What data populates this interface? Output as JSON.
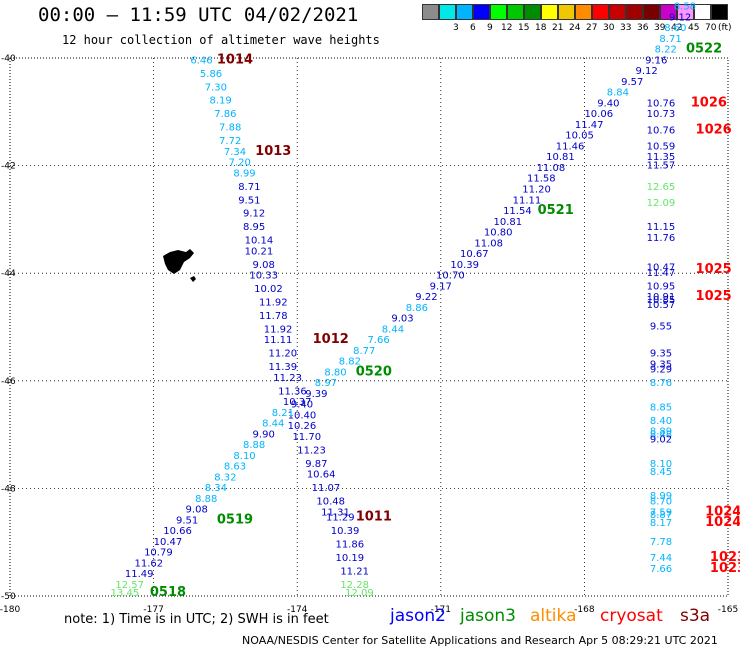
{
  "header": {
    "title": "00:00 – 11:59 UTC 04/02/2021",
    "subtitle": "12 hour collection of altimeter wave heights"
  },
  "color_scale": {
    "unit_label": "(ft)",
    "swatches": [
      {
        "label": "",
        "color": "#8c8c8c"
      },
      {
        "label": "3",
        "color": "#00e8e8"
      },
      {
        "label": "6",
        "color": "#00b4ff"
      },
      {
        "label": "9",
        "color": "#0000ff"
      },
      {
        "label": "12",
        "color": "#00ff00"
      },
      {
        "label": "15",
        "color": "#00c800"
      },
      {
        "label": "18",
        "color": "#008c00"
      },
      {
        "label": "21",
        "color": "#ffff00"
      },
      {
        "label": "24",
        "color": "#f0c800"
      },
      {
        "label": "27",
        "color": "#ff8c00"
      },
      {
        "label": "30",
        "color": "#ff0000"
      },
      {
        "label": "33",
        "color": "#c80000"
      },
      {
        "label": "36",
        "color": "#a00000"
      },
      {
        "label": "39",
        "color": "#780000"
      },
      {
        "label": "42",
        "color": "#c800c8"
      },
      {
        "label": "45",
        "color": "#ff96ff"
      },
      {
        "label": "70",
        "color": "#ffffff"
      },
      {
        "label": "",
        "color": "#000000"
      }
    ]
  },
  "map": {
    "lon_min": -180,
    "lon_max": -165,
    "lat_min": -50,
    "lat_max": -40,
    "x_ticks": [
      "-180",
      "-177",
      "-174",
      "-171",
      "-168",
      "-165"
    ],
    "y_ticks": [
      "-40",
      "-42",
      "-44",
      "-46",
      "-48",
      "-50"
    ],
    "colors": {
      "lightblue": "#00b4ff",
      "blue": "#0000c8",
      "green": "#64e664",
      "darkgreen": "#008c00",
      "darkred": "#800000",
      "red": "#ff0000"
    },
    "labels": [
      {
        "t": "6.46",
        "lon": -176.0,
        "lat": -40.1,
        "c": "lightblue"
      },
      {
        "t": "1014",
        "lon": -175.3,
        "lat": -40.1,
        "c": "darkred"
      },
      {
        "t": "5.86",
        "lon": -175.8,
        "lat": -40.35,
        "c": "lightblue"
      },
      {
        "t": "7.30",
        "lon": -175.7,
        "lat": -40.6,
        "c": "lightblue"
      },
      {
        "t": "8.19",
        "lon": -175.6,
        "lat": -40.85,
        "c": "lightblue"
      },
      {
        "t": "7.86",
        "lon": -175.5,
        "lat": -41.1,
        "c": "lightblue"
      },
      {
        "t": "7.88",
        "lon": -175.4,
        "lat": -41.35,
        "c": "lightblue"
      },
      {
        "t": "7.72",
        "lon": -175.4,
        "lat": -41.6,
        "c": "lightblue"
      },
      {
        "t": "7.34",
        "lon": -175.3,
        "lat": -41.8,
        "c": "lightblue"
      },
      {
        "t": "1013",
        "lon": -174.5,
        "lat": -41.8,
        "c": "darkred"
      },
      {
        "t": "7.20",
        "lon": -175.2,
        "lat": -42.0,
        "c": "lightblue"
      },
      {
        "t": "8.99",
        "lon": -175.1,
        "lat": -42.2,
        "c": "lightblue"
      },
      {
        "t": "8.71",
        "lon": -175.0,
        "lat": -42.45,
        "c": "blue"
      },
      {
        "t": "9.51",
        "lon": -175.0,
        "lat": -42.7,
        "c": "blue"
      },
      {
        "t": "9.12",
        "lon": -174.9,
        "lat": -42.95,
        "c": "blue"
      },
      {
        "t": "8.95",
        "lon": -174.9,
        "lat": -43.2,
        "c": "blue"
      },
      {
        "t": "10.14",
        "lon": -174.8,
        "lat": -43.45,
        "c": "blue"
      },
      {
        "t": "10.21",
        "lon": -174.8,
        "lat": -43.65,
        "c": "blue"
      },
      {
        "t": "9.08",
        "lon": -174.7,
        "lat": -43.9,
        "c": "blue"
      },
      {
        "t": "10.33",
        "lon": -174.7,
        "lat": -44.1,
        "c": "blue"
      },
      {
        "t": "10.02",
        "lon": -174.6,
        "lat": -44.35,
        "c": "blue"
      },
      {
        "t": "11.92",
        "lon": -174.5,
        "lat": -44.6,
        "c": "blue"
      },
      {
        "t": "11.78",
        "lon": -174.5,
        "lat": -44.85,
        "c": "blue"
      },
      {
        "t": "11.92",
        "lon": -174.4,
        "lat": -45.1,
        "c": "blue"
      },
      {
        "t": "11.11",
        "lon": -174.4,
        "lat": -45.3,
        "c": "blue"
      },
      {
        "t": "1012",
        "lon": -173.3,
        "lat": -45.3,
        "c": "darkred"
      },
      {
        "t": "11.20",
        "lon": -174.3,
        "lat": -45.55,
        "c": "blue"
      },
      {
        "t": "11.39",
        "lon": -174.3,
        "lat": -45.8,
        "c": "blue"
      },
      {
        "t": "11.23",
        "lon": -174.2,
        "lat": -46.0,
        "c": "blue"
      },
      {
        "t": "11.36",
        "lon": -174.1,
        "lat": -46.25,
        "c": "blue"
      },
      {
        "t": "10.37",
        "lon": -174.0,
        "lat": -46.45,
        "c": "blue"
      },
      {
        "t": "10.40",
        "lon": -173.9,
        "lat": -46.7,
        "c": "blue"
      },
      {
        "t": "10.26",
        "lon": -173.9,
        "lat": -46.9,
        "c": "blue"
      },
      {
        "t": "11.70",
        "lon": -173.8,
        "lat": -47.1,
        "c": "blue"
      },
      {
        "t": "11.23",
        "lon": -173.7,
        "lat": -47.35,
        "c": "blue"
      },
      {
        "t": "9.87",
        "lon": -173.6,
        "lat": -47.6,
        "c": "blue"
      },
      {
        "t": "10.64",
        "lon": -173.5,
        "lat": -47.8,
        "c": "blue"
      },
      {
        "t": "11.07",
        "lon": -173.4,
        "lat": -48.05,
        "c": "blue"
      },
      {
        "t": "10.48",
        "lon": -173.3,
        "lat": -48.3,
        "c": "blue"
      },
      {
        "t": "11.31",
        "lon": -173.2,
        "lat": -48.5,
        "c": "blue"
      },
      {
        "t": "11.29",
        "lon": -173.1,
        "lat": -48.6,
        "c": "blue"
      },
      {
        "t": "1011",
        "lon": -172.4,
        "lat": -48.6,
        "c": "darkred"
      },
      {
        "t": "10.39",
        "lon": -173.0,
        "lat": -48.85,
        "c": "blue"
      },
      {
        "t": "11.86",
        "lon": -172.9,
        "lat": -49.1,
        "c": "blue"
      },
      {
        "t": "10.19",
        "lon": -172.9,
        "lat": -49.35,
        "c": "blue"
      },
      {
        "t": "11.21",
        "lon": -172.8,
        "lat": -49.6,
        "c": "blue"
      },
      {
        "t": "12.28",
        "lon": -172.8,
        "lat": -49.85,
        "c": "green"
      },
      {
        "t": "12.09",
        "lon": -172.7,
        "lat": -50.0,
        "c": "green"
      },
      {
        "t": "13.45",
        "lon": -177.6,
        "lat": -50.0,
        "c": "green"
      },
      {
        "t": "0518",
        "lon": -176.7,
        "lat": -50.0,
        "c": "darkgreen"
      },
      {
        "t": "12.57",
        "lon": -177.5,
        "lat": -49.85,
        "c": "green"
      },
      {
        "t": "11.49",
        "lon": -177.3,
        "lat": -49.65,
        "c": "blue"
      },
      {
        "t": "11.62",
        "lon": -177.1,
        "lat": -49.45,
        "c": "blue"
      },
      {
        "t": "10.79",
        "lon": -176.9,
        "lat": -49.25,
        "c": "blue"
      },
      {
        "t": "10.47",
        "lon": -176.7,
        "lat": -49.05,
        "c": "blue"
      },
      {
        "t": "10.66",
        "lon": -176.5,
        "lat": -48.85,
        "c": "blue"
      },
      {
        "t": "9.51",
        "lon": -176.3,
        "lat": -48.65,
        "c": "blue"
      },
      {
        "t": "0519",
        "lon": -175.3,
        "lat": -48.65,
        "c": "darkgreen"
      },
      {
        "t": "9.08",
        "lon": -176.1,
        "lat": -48.45,
        "c": "blue"
      },
      {
        "t": "8.88",
        "lon": -175.9,
        "lat": -48.25,
        "c": "lightblue"
      },
      {
        "t": "8.34",
        "lon": -175.7,
        "lat": -48.05,
        "c": "lightblue"
      },
      {
        "t": "8.32",
        "lon": -175.5,
        "lat": -47.85,
        "c": "lightblue"
      },
      {
        "t": "8.63",
        "lon": -175.3,
        "lat": -47.65,
        "c": "lightblue"
      },
      {
        "t": "8.10",
        "lon": -175.1,
        "lat": -47.45,
        "c": "lightblue"
      },
      {
        "t": "8.88",
        "lon": -174.9,
        "lat": -47.25,
        "c": "lightblue"
      },
      {
        "t": "9.90",
        "lon": -174.7,
        "lat": -47.05,
        "c": "blue"
      },
      {
        "t": "8.44",
        "lon": -174.5,
        "lat": -46.85,
        "c": "lightblue"
      },
      {
        "t": "8.21",
        "lon": -174.3,
        "lat": -46.65,
        "c": "lightblue"
      },
      {
        "t": "9.40",
        "lon": -173.9,
        "lat": -46.5,
        "c": "blue"
      },
      {
        "t": "9.39",
        "lon": -173.6,
        "lat": -46.3,
        "c": "blue"
      },
      {
        "t": "8.97",
        "lon": -173.4,
        "lat": -46.1,
        "c": "lightblue"
      },
      {
        "t": "8.80",
        "lon": -173.2,
        "lat": -45.9,
        "c": "lightblue"
      },
      {
        "t": "0520",
        "lon": -172.4,
        "lat": -45.9,
        "c": "darkgreen"
      },
      {
        "t": "8.82",
        "lon": -172.9,
        "lat": -45.7,
        "c": "lightblue"
      },
      {
        "t": "8.77",
        "lon": -172.6,
        "lat": -45.5,
        "c": "lightblue"
      },
      {
        "t": "7.66",
        "lon": -172.3,
        "lat": -45.3,
        "c": "lightblue"
      },
      {
        "t": "8.44",
        "lon": -172.0,
        "lat": -45.1,
        "c": "lightblue"
      },
      {
        "t": "9.03",
        "lon": -171.8,
        "lat": -44.9,
        "c": "blue"
      },
      {
        "t": "8.86",
        "lon": -171.5,
        "lat": -44.7,
        "c": "lightblue"
      },
      {
        "t": "9.22",
        "lon": -171.3,
        "lat": -44.5,
        "c": "blue"
      },
      {
        "t": "9.17",
        "lon": -171.0,
        "lat": -44.3,
        "c": "blue"
      },
      {
        "t": "10.70",
        "lon": -170.8,
        "lat": -44.1,
        "c": "blue"
      },
      {
        "t": "10.39",
        "lon": -170.5,
        "lat": -43.9,
        "c": "blue"
      },
      {
        "t": "10.67",
        "lon": -170.3,
        "lat": -43.7,
        "c": "blue"
      },
      {
        "t": "11.08",
        "lon": -170.0,
        "lat": -43.5,
        "c": "blue"
      },
      {
        "t": "10.80",
        "lon": -169.8,
        "lat": -43.3,
        "c": "blue"
      },
      {
        "t": "10.81",
        "lon": -169.6,
        "lat": -43.1,
        "c": "blue"
      },
      {
        "t": "11.54",
        "lon": -169.4,
        "lat": -42.9,
        "c": "blue"
      },
      {
        "t": "0521",
        "lon": -168.6,
        "lat": -42.9,
        "c": "darkgreen"
      },
      {
        "t": "11.11",
        "lon": -169.2,
        "lat": -42.7,
        "c": "blue"
      },
      {
        "t": "11.20",
        "lon": -169.0,
        "lat": -42.5,
        "c": "blue"
      },
      {
        "t": "11.58",
        "lon": -168.9,
        "lat": -42.3,
        "c": "blue"
      },
      {
        "t": "11.08",
        "lon": -168.7,
        "lat": -42.1,
        "c": "blue"
      },
      {
        "t": "10.81",
        "lon": -168.5,
        "lat": -41.9,
        "c": "blue"
      },
      {
        "t": "11.46",
        "lon": -168.3,
        "lat": -41.7,
        "c": "blue"
      },
      {
        "t": "10.05",
        "lon": -168.1,
        "lat": -41.5,
        "c": "blue"
      },
      {
        "t": "11.47",
        "lon": -167.9,
        "lat": -41.3,
        "c": "blue"
      },
      {
        "t": "10.06",
        "lon": -167.7,
        "lat": -41.1,
        "c": "blue"
      },
      {
        "t": "9.40",
        "lon": -167.5,
        "lat": -40.9,
        "c": "blue"
      },
      {
        "t": "8.84",
        "lon": -167.3,
        "lat": -40.7,
        "c": "lightblue"
      },
      {
        "t": "9.57",
        "lon": -167.0,
        "lat": -40.5,
        "c": "blue"
      },
      {
        "t": "9.12",
        "lon": -166.7,
        "lat": -40.3,
        "c": "blue"
      },
      {
        "t": "9.16",
        "lon": -166.5,
        "lat": -40.1,
        "c": "blue"
      },
      {
        "t": "8.22",
        "lon": -166.3,
        "lat": -39.9,
        "c": "lightblue"
      },
      {
        "t": "0522",
        "lon": -165.5,
        "lat": -39.9,
        "c": "darkgreen"
      },
      {
        "t": "8.71",
        "lon": -166.2,
        "lat": -39.7,
        "c": "lightblue"
      },
      {
        "t": "8.60",
        "lon": -166.1,
        "lat": -39.5,
        "c": "lightblue"
      },
      {
        "t": "9.12",
        "lon": -166.0,
        "lat": -39.3,
        "c": "blue"
      },
      {
        "t": "8.58",
        "lon": -165.9,
        "lat": -39.1,
        "c": "lightblue"
      },
      {
        "t": "8.36",
        "lon": -165.8,
        "lat": -38.9,
        "c": "lightblue"
      },
      {
        "t": "10.76",
        "lon": -166.4,
        "lat": -40.9,
        "c": "blue"
      },
      {
        "t": "1026",
        "lon": -165.4,
        "lat": -40.9,
        "c": "red"
      },
      {
        "t": "10.73",
        "lon": -166.4,
        "lat": -41.1,
        "c": "blue"
      },
      {
        "t": "10.76",
        "lon": -166.4,
        "lat": -41.4,
        "c": "blue"
      },
      {
        "t": "1026",
        "lon": -165.3,
        "lat": -41.4,
        "c": "red"
      },
      {
        "t": "10.59",
        "lon": -166.4,
        "lat": -41.7,
        "c": "blue"
      },
      {
        "t": "11.35",
        "lon": -166.4,
        "lat": -41.9,
        "c": "blue"
      },
      {
        "t": "11.57",
        "lon": -166.4,
        "lat": -42.05,
        "c": "blue"
      },
      {
        "t": "12.65",
        "lon": -166.4,
        "lat": -42.45,
        "c": "green"
      },
      {
        "t": "12.09",
        "lon": -166.4,
        "lat": -42.75,
        "c": "green"
      },
      {
        "t": "11.15",
        "lon": -166.4,
        "lat": -43.2,
        "c": "blue"
      },
      {
        "t": "11.76",
        "lon": -166.4,
        "lat": -43.4,
        "c": "blue"
      },
      {
        "t": "10.47",
        "lon": -166.4,
        "lat": -43.95,
        "c": "blue"
      },
      {
        "t": "11.47",
        "lon": -166.4,
        "lat": -44.05,
        "c": "blue"
      },
      {
        "t": "1025",
        "lon": -165.3,
        "lat": -44.0,
        "c": "red"
      },
      {
        "t": "10.95",
        "lon": -166.4,
        "lat": -44.3,
        "c": "blue"
      },
      {
        "t": "10.91",
        "lon": -166.4,
        "lat": -44.5,
        "c": "blue"
      },
      {
        "t": "10.85",
        "lon": -166.4,
        "lat": -44.55,
        "c": "blue"
      },
      {
        "t": "10.57",
        "lon": -166.4,
        "lat": -44.65,
        "c": "blue"
      },
      {
        "t": "1025",
        "lon": -165.3,
        "lat": -44.5,
        "c": "red"
      },
      {
        "t": "9.55",
        "lon": -166.4,
        "lat": -45.05,
        "c": "blue"
      },
      {
        "t": "9.35",
        "lon": -166.4,
        "lat": -45.55,
        "c": "blue"
      },
      {
        "t": "9.35",
        "lon": -166.4,
        "lat": -45.75,
        "c": "blue"
      },
      {
        "t": "9.29",
        "lon": -166.4,
        "lat": -45.85,
        "c": "blue"
      },
      {
        "t": "8.76",
        "lon": -166.4,
        "lat": -46.1,
        "c": "lightblue"
      },
      {
        "t": "8.85",
        "lon": -166.4,
        "lat": -46.55,
        "c": "lightblue"
      },
      {
        "t": "8.40",
        "lon": -166.4,
        "lat": -46.8,
        "c": "lightblue"
      },
      {
        "t": "8.89",
        "lon": -166.4,
        "lat": -47.0,
        "c": "lightblue"
      },
      {
        "t": "8.48",
        "lon": -166.4,
        "lat": -47.05,
        "c": "lightblue"
      },
      {
        "t": "9.02",
        "lon": -166.4,
        "lat": -47.15,
        "c": "blue"
      },
      {
        "t": "8.10",
        "lon": -166.4,
        "lat": -47.6,
        "c": "lightblue"
      },
      {
        "t": "8.45",
        "lon": -166.4,
        "lat": -47.75,
        "c": "lightblue"
      },
      {
        "t": "8.99",
        "lon": -166.4,
        "lat": -48.2,
        "c": "lightblue"
      },
      {
        "t": "8.70",
        "lon": -166.4,
        "lat": -48.3,
        "c": "lightblue"
      },
      {
        "t": "7.59",
        "lon": -166.4,
        "lat": -48.5,
        "c": "lightblue"
      },
      {
        "t": "8.87",
        "lon": -166.4,
        "lat": -48.55,
        "c": "lightblue"
      },
      {
        "t": "8.17",
        "lon": -166.4,
        "lat": -48.7,
        "c": "lightblue"
      },
      {
        "t": "1024",
        "lon": -165.1,
        "lat": -48.5,
        "c": "red"
      },
      {
        "t": "1024",
        "lon": -165.1,
        "lat": -48.7,
        "c": "red"
      },
      {
        "t": "7.78",
        "lon": -166.4,
        "lat": -49.05,
        "c": "lightblue"
      },
      {
        "t": "7.44",
        "lon": -166.4,
        "lat": -49.35,
        "c": "lightblue"
      },
      {
        "t": "7.66",
        "lon": -166.4,
        "lat": -49.55,
        "c": "lightblue"
      },
      {
        "t": "1023",
        "lon": -165.0,
        "lat": -49.35,
        "c": "red"
      },
      {
        "t": "1023",
        "lon": -165.0,
        "lat": -49.55,
        "c": "red"
      }
    ]
  },
  "footer": {
    "note": "note: 1) Time is in UTC; 2) SWH is in feet",
    "satellites": [
      {
        "name": "jason2",
        "color": "#0000ff"
      },
      {
        "name": "jason3",
        "color": "#008c00"
      },
      {
        "name": "altika",
        "color": "#ff8c00"
      },
      {
        "name": "cryosat",
        "color": "#ff0000"
      },
      {
        "name": "s3a",
        "color": "#800000"
      }
    ],
    "credit": "NOAA/NESDIS Center for Satellite Applications and Research    Apr  5 08:29:21 UTC 2021"
  }
}
